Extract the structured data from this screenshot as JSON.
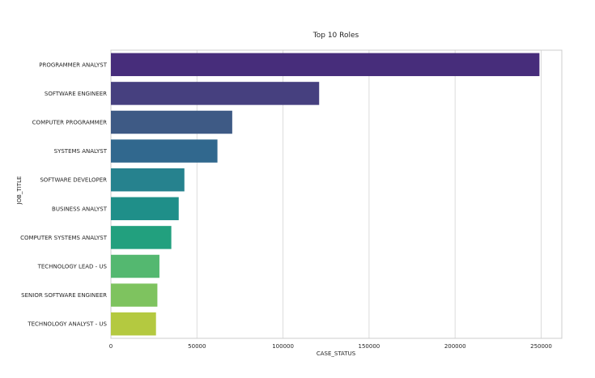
{
  "chart_data": {
    "type": "bar",
    "orientation": "horizontal",
    "title": "Top 10 Roles",
    "xlabel": "CASE_STATUS",
    "ylabel": "JOB_TITLE",
    "xlim": [
      0,
      262000
    ],
    "xticks": [
      0,
      50000,
      100000,
      150000,
      200000,
      250000
    ],
    "grid": "vertical",
    "categories": [
      "PROGRAMMER ANALYST",
      "SOFTWARE ENGINEER",
      "COMPUTER PROGRAMMER",
      "SYSTEMS ANALYST",
      "SOFTWARE DEVELOPER",
      "BUSINESS ANALYST",
      "COMPUTER SYSTEMS ANALYST",
      "TECHNOLOGY LEAD - US",
      "SENIOR SOFTWARE ENGINEER",
      "TECHNOLOGY ANALYST - US"
    ],
    "values": [
      249000,
      121000,
      70500,
      61900,
      42700,
      39400,
      35100,
      28200,
      27000,
      26200
    ],
    "colors": [
      "#472d7b",
      "#46407f",
      "#3e5a85",
      "#31688e",
      "#26828e",
      "#1f8f89",
      "#22a07e",
      "#54b870",
      "#7ec35f",
      "#b4c940"
    ]
  }
}
